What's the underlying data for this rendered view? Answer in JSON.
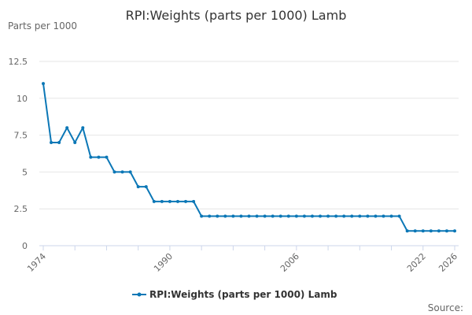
{
  "chart_data": {
    "type": "line",
    "title": "RPI:Weights (parts per 1000) Lamb",
    "ylabel": "Parts per 1000",
    "xlabel": "",
    "ylim": [
      0,
      12.5
    ],
    "xlim": [
      1974,
      2026
    ],
    "y_ticks": [
      "0",
      "2.5",
      "5",
      "7.5",
      "10",
      "12.5"
    ],
    "x_tick_labels": [
      "1974",
      "1990",
      "2006",
      "2022",
      "2026"
    ],
    "grid": true,
    "legend": "bottom",
    "series": [
      {
        "name": "RPI:Weights (parts per 1000) Lamb",
        "color": "#0b77b6",
        "x": [
          1974,
          1975,
          1976,
          1977,
          1978,
          1979,
          1980,
          1981,
          1982,
          1983,
          1984,
          1985,
          1986,
          1987,
          1988,
          1989,
          1990,
          1991,
          1992,
          1993,
          1994,
          1995,
          1996,
          1997,
          1998,
          1999,
          2000,
          2001,
          2002,
          2003,
          2004,
          2005,
          2006,
          2007,
          2008,
          2009,
          2010,
          2011,
          2012,
          2013,
          2014,
          2015,
          2016,
          2017,
          2018,
          2019,
          2020,
          2021,
          2022,
          2023,
          2024,
          2025,
          2026
        ],
        "values": [
          11,
          7,
          7,
          8,
          7,
          8,
          6,
          6,
          6,
          5,
          5,
          5,
          4,
          4,
          3,
          3,
          3,
          3,
          3,
          3,
          2,
          2,
          2,
          2,
          2,
          2,
          2,
          2,
          2,
          2,
          2,
          2,
          2,
          2,
          2,
          2,
          2,
          2,
          2,
          2,
          2,
          2,
          2,
          2,
          2,
          2,
          1,
          1,
          1,
          1,
          1,
          1,
          1
        ]
      }
    ]
  },
  "source_label": "Source:"
}
